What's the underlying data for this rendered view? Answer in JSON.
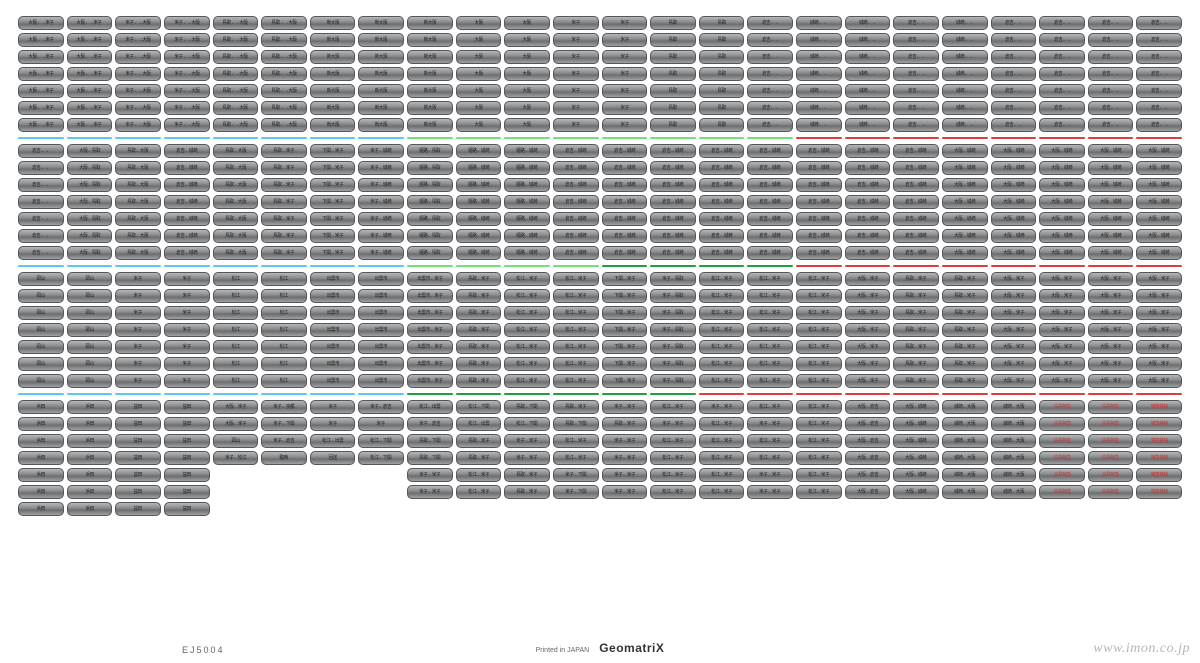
{
  "meta": {
    "product_code": "EJ5004",
    "printed_in": "Printed in JAPAN",
    "brand": "GeomatriX",
    "watermark": "www.imon.co.jp"
  },
  "layout": {
    "cols": 24,
    "block_rows": 7,
    "num_blocks": 4,
    "plate_bg": "#8c8d8f",
    "plate_border": "#54565a",
    "sheet_bg": "#ffffff"
  },
  "divider_colors": {
    "blue": "#5cc8f0",
    "lgreen": "#6fe27a",
    "green": "#1fa038",
    "red": "#e23b3b"
  },
  "dividers": [
    {
      "after_block": 0,
      "segments": [
        "blue",
        "blue",
        "blue",
        "blue",
        "blue",
        "blue",
        "blue",
        "blue",
        "lgreen",
        "lgreen",
        "lgreen",
        "lgreen",
        "lgreen",
        "lgreen",
        "lgreen",
        "lgreen",
        "red",
        "red",
        "red",
        "red",
        "red",
        "red",
        "red",
        "red"
      ]
    },
    {
      "after_block": 1,
      "segments": [
        "blue",
        "blue",
        "blue",
        "blue",
        "blue",
        "blue",
        "blue",
        "blue",
        "lgreen",
        "lgreen",
        "lgreen",
        "lgreen",
        "green",
        "green",
        "green",
        "green",
        "red",
        "red",
        "red",
        "red",
        "red",
        "red",
        "red",
        "red"
      ]
    },
    {
      "after_block": 2,
      "segments": [
        "blue",
        "blue",
        "blue",
        "blue",
        "blue",
        "blue",
        "blue",
        "blue",
        "green",
        "green",
        "green",
        "green",
        "green",
        "green",
        "red",
        "red",
        "red",
        "red",
        "red",
        "red",
        "red",
        "red",
        "red",
        "red"
      ]
    }
  ],
  "station_pool": [
    "大阪",
    "新大阪",
    "米子",
    "鳥取",
    "倉吉",
    "城崎",
    "岡山",
    "松江",
    "出雲市",
    "浜田",
    "益田",
    "下関",
    "姫路",
    "天王寺",
    "京都",
    "福知山",
    "臨時",
    "回送",
    "白鳥",
    "特急",
    "急行"
  ],
  "plate_texts": {
    "b0": [
      [
        "大阪←→米子",
        "大阪←→米子",
        "米子←→大阪",
        "米子←→大阪",
        "鳥取←→大阪",
        "鳥取←→大阪",
        "新大阪",
        "新大阪",
        "新大阪",
        "大阪",
        "大阪",
        "米子",
        "米子",
        "鳥取",
        "鳥取",
        "倉吉←→",
        "城崎←→",
        "城崎←→",
        "倉吉←→",
        "城崎←→",
        "倉吉←→",
        "倉吉←→",
        "倉吉←→",
        "倉吉←→"
      ],
      [
        "大阪←→米子",
        "大阪←→米子",
        "米子←→大阪",
        "米子←→大阪",
        "鳥取←→大阪",
        "鳥取←→大阪",
        "新大阪",
        "新大阪",
        "新大阪",
        "大阪",
        "大阪",
        "米子",
        "米子",
        "鳥取",
        "鳥取",
        "倉吉←→",
        "城崎←→",
        "城崎←→",
        "倉吉←→",
        "城崎←→",
        "倉吉←→",
        "倉吉←→",
        "倉吉←→",
        "倉吉←→"
      ],
      [
        "大阪←→米子",
        "大阪←→米子",
        "米子←→大阪",
        "米子←→大阪",
        "鳥取←→大阪",
        "鳥取←→大阪",
        "新大阪",
        "新大阪",
        "新大阪",
        "大阪",
        "大阪",
        "米子",
        "米子",
        "鳥取",
        "鳥取",
        "倉吉←→",
        "城崎←→",
        "城崎←→",
        "倉吉←→",
        "城崎←→",
        "倉吉←→",
        "倉吉←→",
        "倉吉←→",
        "倉吉←→"
      ],
      [
        "大阪←→米子",
        "大阪←→米子",
        "米子←→大阪",
        "米子←→大阪",
        "鳥取←→大阪",
        "鳥取←→大阪",
        "新大阪",
        "新大阪",
        "新大阪",
        "大阪",
        "大阪",
        "米子",
        "米子",
        "鳥取",
        "鳥取",
        "倉吉←→",
        "城崎←→",
        "城崎←→",
        "倉吉←→",
        "城崎←→",
        "倉吉←→",
        "倉吉←→",
        "倉吉←→",
        "倉吉←→"
      ],
      [
        "大阪←→米子",
        "大阪←→米子",
        "米子←→大阪",
        "米子←→大阪",
        "鳥取←→大阪",
        "鳥取←→大阪",
        "新大阪",
        "新大阪",
        "新大阪",
        "大阪",
        "大阪",
        "米子",
        "米子",
        "鳥取",
        "鳥取",
        "倉吉←→",
        "城崎←→",
        "城崎←→",
        "倉吉←→",
        "城崎←→",
        "倉吉←→",
        "倉吉←→",
        "倉吉←→",
        "倉吉←→"
      ],
      [
        "大阪←→米子",
        "大阪←→米子",
        "米子←→大阪",
        "米子←→大阪",
        "鳥取←→大阪",
        "鳥取←→大阪",
        "新大阪",
        "新大阪",
        "新大阪",
        "大阪",
        "大阪",
        "米子",
        "米子",
        "鳥取",
        "鳥取",
        "倉吉←→",
        "城崎←→",
        "城崎←→",
        "倉吉←→",
        "城崎←→",
        "倉吉←→",
        "倉吉←→",
        "倉吉←→",
        "倉吉←→"
      ],
      [
        "大阪←→米子",
        "大阪←→米子",
        "米子←→大阪",
        "米子←→大阪",
        "鳥取←→大阪",
        "鳥取←→大阪",
        "新大阪",
        "新大阪",
        "新大阪",
        "大阪",
        "大阪",
        "米子",
        "米子",
        "鳥取",
        "鳥取",
        "倉吉←→",
        "城崎←→",
        "城崎←→",
        "倉吉←→",
        "城崎←→",
        "倉吉←→",
        "倉吉←→",
        "倉吉←→",
        "倉吉←→"
      ]
    ],
    "b1": [
      [
        "倉吉←→",
        "大阪←鳥取",
        "鳥取←大阪",
        "倉吉←城崎",
        "鳥取←大阪",
        "鳥取←米子",
        "下関←米子",
        "米子←城崎",
        "姫路←鳥取",
        "姫路←城崎",
        "姫路←城崎",
        "倉吉←城崎",
        "倉吉←城崎",
        "倉吉←城崎",
        "倉吉←城崎",
        "倉吉←城崎",
        "倉吉←城崎",
        "倉吉←城崎",
        "倉吉←城崎",
        "大阪←城崎",
        "大阪←城崎",
        "大阪←城崎",
        "大阪←城崎",
        "大阪←城崎"
      ],
      [
        "倉吉←→",
        "大阪←鳥取",
        "鳥取←大阪",
        "倉吉←城崎",
        "鳥取←大阪",
        "鳥取←米子",
        "下関←米子",
        "米子←城崎",
        "姫路←鳥取",
        "姫路←城崎",
        "姫路←城崎",
        "倉吉←城崎",
        "倉吉←城崎",
        "倉吉←城崎",
        "倉吉←城崎",
        "倉吉←城崎",
        "倉吉←城崎",
        "倉吉←城崎",
        "倉吉←城崎",
        "大阪←城崎",
        "大阪←城崎",
        "大阪←城崎",
        "大阪←城崎",
        "大阪←城崎"
      ],
      [
        "倉吉←→",
        "大阪←鳥取",
        "鳥取←大阪",
        "倉吉←城崎",
        "鳥取←大阪",
        "鳥取←米子",
        "下関←米子",
        "米子←城崎",
        "姫路←鳥取",
        "姫路←城崎",
        "姫路←城崎",
        "倉吉←城崎",
        "倉吉←城崎",
        "倉吉←城崎",
        "倉吉←城崎",
        "倉吉←城崎",
        "倉吉←城崎",
        "倉吉←城崎",
        "倉吉←城崎",
        "大阪←城崎",
        "大阪←城崎",
        "大阪←城崎",
        "大阪←城崎",
        "大阪←城崎"
      ],
      [
        "倉吉←→",
        "大阪←鳥取",
        "鳥取←大阪",
        "倉吉←城崎",
        "鳥取←大阪",
        "鳥取←米子",
        "下関←米子",
        "米子←城崎",
        "姫路←鳥取",
        "姫路←城崎",
        "姫路←城崎",
        "倉吉←城崎",
        "倉吉←城崎",
        "倉吉←城崎",
        "倉吉←城崎",
        "倉吉←城崎",
        "倉吉←城崎",
        "倉吉←城崎",
        "倉吉←城崎",
        "大阪←城崎",
        "大阪←城崎",
        "大阪←城崎",
        "大阪←城崎",
        "大阪←城崎"
      ],
      [
        "倉吉←→",
        "大阪←鳥取",
        "鳥取←大阪",
        "倉吉←城崎",
        "鳥取←大阪",
        "鳥取←米子",
        "下関←米子",
        "米子←城崎",
        "姫路←鳥取",
        "姫路←城崎",
        "姫路←城崎",
        "倉吉←城崎",
        "倉吉←城崎",
        "倉吉←城崎",
        "倉吉←城崎",
        "倉吉←城崎",
        "倉吉←城崎",
        "倉吉←城崎",
        "倉吉←城崎",
        "大阪←城崎",
        "大阪←城崎",
        "大阪←城崎",
        "大阪←城崎",
        "大阪←城崎"
      ],
      [
        "倉吉←→",
        "大阪←鳥取",
        "鳥取←大阪",
        "倉吉←城崎",
        "鳥取←大阪",
        "鳥取←米子",
        "下関←米子",
        "米子←城崎",
        "姫路←鳥取",
        "姫路←城崎",
        "姫路←城崎",
        "倉吉←城崎",
        "倉吉←城崎",
        "倉吉←城崎",
        "倉吉←城崎",
        "倉吉←城崎",
        "倉吉←城崎",
        "倉吉←城崎",
        "倉吉←城崎",
        "大阪←城崎",
        "大阪←城崎",
        "大阪←城崎",
        "大阪←城崎",
        "大阪←城崎"
      ],
      [
        "倉吉←→",
        "大阪←鳥取",
        "鳥取←大阪",
        "倉吉←城崎",
        "鳥取←大阪",
        "鳥取←米子",
        "下関←米子",
        "米子←城崎",
        "姫路←鳥取",
        "姫路←城崎",
        "姫路←城崎",
        "倉吉←城崎",
        "倉吉←城崎",
        "倉吉←城崎",
        "倉吉←城崎",
        "倉吉←城崎",
        "倉吉←城崎",
        "倉吉←城崎",
        "倉吉←城崎",
        "大阪←城崎",
        "大阪←城崎",
        "大阪←城崎",
        "大阪←城崎",
        "大阪←城崎"
      ]
    ],
    "b2": [
      [
        "岡山",
        "岡山",
        "米子",
        "米子",
        "松江",
        "松江",
        "出雲市",
        "出雲市",
        "出雲市←米子",
        "鳥取←米子",
        "松江←米子",
        "松江←米子",
        "下関←米子",
        "米子←鳥取",
        "松江←米子",
        "松江←米子",
        "松江←米子",
        "大阪←米子",
        "鳥取←米子",
        "鳥取←米子",
        "大阪←米子",
        "大阪←米子",
        "大阪←米子",
        "大阪←米子"
      ],
      [
        "岡山",
        "岡山",
        "米子",
        "米子",
        "松江",
        "松江",
        "出雲市",
        "出雲市",
        "出雲市←米子",
        "鳥取←米子",
        "松江←米子",
        "松江←米子",
        "下関←米子",
        "米子←鳥取",
        "松江←米子",
        "松江←米子",
        "松江←米子",
        "大阪←米子",
        "鳥取←米子",
        "鳥取←米子",
        "大阪←米子",
        "大阪←米子",
        "大阪←米子",
        "大阪←米子"
      ],
      [
        "岡山",
        "岡山",
        "米子",
        "米子",
        "松江",
        "松江",
        "出雲市",
        "出雲市",
        "出雲市←米子",
        "鳥取←米子",
        "松江←米子",
        "松江←米子",
        "下関←米子",
        "米子←鳥取",
        "松江←米子",
        "松江←米子",
        "松江←米子",
        "大阪←米子",
        "鳥取←米子",
        "鳥取←米子",
        "大阪←米子",
        "大阪←米子",
        "大阪←米子",
        "大阪←米子"
      ],
      [
        "岡山",
        "岡山",
        "米子",
        "米子",
        "松江",
        "松江",
        "出雲市",
        "出雲市",
        "出雲市←米子",
        "鳥取←米子",
        "松江←米子",
        "松江←米子",
        "下関←米子",
        "米子←鳥取",
        "松江←米子",
        "松江←米子",
        "松江←米子",
        "大阪←米子",
        "鳥取←米子",
        "鳥取←米子",
        "大阪←米子",
        "大阪←米子",
        "大阪←米子",
        "大阪←米子"
      ],
      [
        "岡山",
        "岡山",
        "米子",
        "米子",
        "松江",
        "松江",
        "出雲市",
        "出雲市",
        "出雲市←米子",
        "鳥取←米子",
        "松江←米子",
        "松江←米子",
        "下関←米子",
        "米子←鳥取",
        "松江←米子",
        "松江←米子",
        "松江←米子",
        "大阪←米子",
        "鳥取←米子",
        "鳥取←米子",
        "大阪←米子",
        "大阪←米子",
        "大阪←米子",
        "大阪←米子"
      ],
      [
        "岡山",
        "岡山",
        "米子",
        "米子",
        "松江",
        "松江",
        "出雲市",
        "出雲市",
        "出雲市←米子",
        "鳥取←米子",
        "松江←米子",
        "松江←米子",
        "下関←米子",
        "米子←鳥取",
        "松江←米子",
        "松江←米子",
        "松江←米子",
        "大阪←米子",
        "鳥取←米子",
        "鳥取←米子",
        "大阪←米子",
        "大阪←米子",
        "大阪←米子",
        "大阪←米子"
      ],
      [
        "岡山",
        "岡山",
        "米子",
        "米子",
        "松江",
        "松江",
        "出雲市",
        "出雲市",
        "出雲市←米子",
        "鳥取←米子",
        "松江←米子",
        "松江←米子",
        "下関←米子",
        "米子←鳥取",
        "松江←米子",
        "松江←米子",
        "松江←米子",
        "大阪←米子",
        "鳥取←米子",
        "鳥取←米子",
        "大阪←米子",
        "大阪←米子",
        "大阪←米子",
        "大阪←米子"
      ]
    ],
    "b3": [
      [
        "浜田",
        "浜田",
        "益田",
        "益田",
        "大阪←米子",
        "米子←京都",
        "米子",
        "米子←倉吉",
        "松江←出雲",
        "松江←下関",
        "鳥取←下関",
        "鳥取←米子",
        "米子←米子",
        "松江←米子",
        "米子←米子",
        "松江←米子",
        "松江←米子",
        "大阪←倉吉",
        "大阪←城崎",
        "城崎←大阪",
        "城崎←大阪",
        "白鳥特急",
        "白鳥特急",
        "特急特快"
      ],
      [
        "浜田",
        "浜田",
        "益田",
        "益田",
        "大阪←米子",
        "米子←下関",
        "米子",
        "米子",
        "米子←倉吉",
        "松江←出雲",
        "松江←下関",
        "鳥取←下関",
        "鳥取←米子",
        "米子←米子",
        "松江←米子",
        "米子←米子",
        "松江←米子",
        "大阪←倉吉",
        "大阪←城崎",
        "城崎←大阪",
        "城崎←大阪",
        "白鳥特急",
        "白鳥特急",
        "特急特快"
      ],
      [
        "浜田",
        "浜田",
        "益田",
        "益田",
        "岡山",
        "米子←倉吉",
        "松江←出雲",
        "松江←下関",
        "鳥取←下関",
        "鳥取←米子",
        "米子←米子",
        "松江←米子",
        "米子←米子",
        "松江←米子",
        "松江←米子",
        "松江←米子",
        "松江←米子",
        "大阪←倉吉",
        "大阪←城崎",
        "城崎←大阪",
        "城崎←大阪",
        "白鳥特急",
        "白鳥特急",
        "特急特快"
      ],
      [
        "浜田",
        "浜田",
        "益田",
        "益田",
        "米子←松江",
        "臨時",
        "回送",
        "松江←下関",
        "鳥取←下関",
        "鳥取←米子",
        "米子←米子",
        "松江←米子",
        "米子←米子",
        "松江←米子",
        "松江←米子",
        "松江←米子",
        "松江←米子",
        "大阪←倉吉",
        "大阪←城崎",
        "城崎←大阪",
        "城崎←大阪",
        "白鳥特急",
        "白鳥特急",
        "特急特快"
      ],
      [
        "浜田",
        "浜田",
        "益田",
        "益田",
        "",
        "",
        "",
        "",
        "米子←米子",
        "松江←米子",
        "鳥取←米子",
        "米子←下関",
        "米子←米子",
        "松江←米子",
        "松江←米子",
        "米子←米子",
        "松江←米子",
        "大阪←倉吉",
        "大阪←城崎",
        "城崎←大阪",
        "城崎←大阪",
        "白鳥特急",
        "白鳥特急",
        "特急特快"
      ],
      [
        "浜田",
        "浜田",
        "益田",
        "益田",
        "",
        "",
        "",
        "",
        "米子←米子",
        "松江←米子",
        "鳥取←米子",
        "米子←下関",
        "米子←米子",
        "松江←米子",
        "松江←米子",
        "米子←米子",
        "松江←米子",
        "大阪←倉吉",
        "大阪←城崎",
        "城崎←大阪",
        "城崎←大阪",
        "白鳥特急",
        "白鳥特急",
        "特急特快"
      ],
      [
        "浜田",
        "浜田",
        "益田",
        "益田",
        "",
        "",
        "",
        "",
        "",
        "",
        "",
        "",
        "",
        "",
        "",
        "",
        "",
        "",
        "",
        "",
        "",
        "",
        "",
        ""
      ]
    ]
  },
  "red_text_cols_b3": [
    21,
    22,
    23
  ]
}
